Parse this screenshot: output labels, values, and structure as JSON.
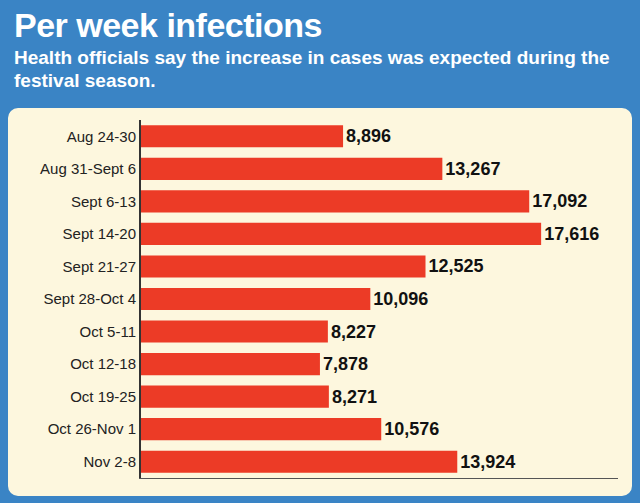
{
  "chart_data": {
    "type": "bar",
    "title": "Per week infections",
    "subtitle": "Health officials say the increase in cases was expected during the festival season.",
    "orientation": "horizontal",
    "categories": [
      "Aug 24-30",
      "Aug 31-Sept 6",
      "Sept 6-13",
      "Sept 14-20",
      "Sept 21-27",
      "Sept 28-Oct 4",
      "Oct 5-11",
      "Oct 12-18",
      "Oct 19-25",
      "Oct 26-Nov 1",
      "Nov 2-8"
    ],
    "values": [
      8896,
      13267,
      17092,
      17616,
      12525,
      10096,
      8227,
      7878,
      8271,
      10576,
      13924
    ],
    "value_labels": [
      "8,896",
      "13,267",
      "17,092",
      "17,616",
      "12,525",
      "10,096",
      "8,227",
      "7,878",
      "8,271",
      "10,576",
      "13,924"
    ],
    "color": "#ec3b26",
    "xlim": [
      0,
      21000
    ],
    "data_labels": true,
    "tick_labels": "y",
    "grid": false
  }
}
